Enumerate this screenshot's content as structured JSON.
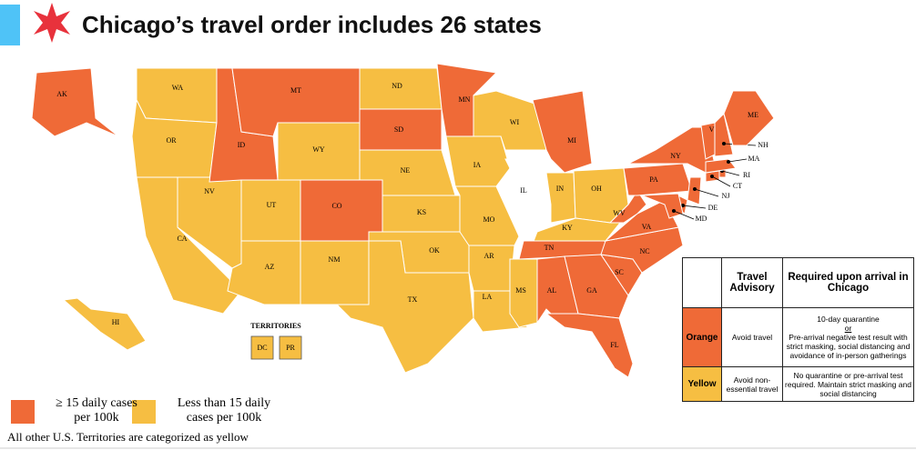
{
  "header": {
    "title": "Chicago’s travel order includes 26 states"
  },
  "map": {
    "colors": {
      "orange": "#ef6a37",
      "yellow": "#f6be42",
      "white": "#ffffff"
    },
    "states": [
      {
        "label": "AK",
        "status": "orange"
      },
      {
        "label": "HI",
        "status": "yellow"
      },
      {
        "label": "WA",
        "status": "yellow"
      },
      {
        "label": "OR",
        "status": "yellow"
      },
      {
        "label": "CA",
        "status": "yellow"
      },
      {
        "label": "NV",
        "status": "yellow"
      },
      {
        "label": "ID",
        "status": "orange"
      },
      {
        "label": "MT",
        "status": "orange"
      },
      {
        "label": "WY",
        "status": "yellow"
      },
      {
        "label": "UT",
        "status": "yellow"
      },
      {
        "label": "CO",
        "status": "orange"
      },
      {
        "label": "AZ",
        "status": "yellow"
      },
      {
        "label": "NM",
        "status": "yellow"
      },
      {
        "label": "ND",
        "status": "yellow"
      },
      {
        "label": "SD",
        "status": "orange"
      },
      {
        "label": "NE",
        "status": "yellow"
      },
      {
        "label": "KS",
        "status": "yellow"
      },
      {
        "label": "OK",
        "status": "yellow"
      },
      {
        "label": "TX",
        "status": "yellow"
      },
      {
        "label": "MN",
        "status": "orange"
      },
      {
        "label": "IA",
        "status": "yellow"
      },
      {
        "label": "MO",
        "status": "yellow"
      },
      {
        "label": "AR",
        "status": "yellow"
      },
      {
        "label": "LA",
        "status": "yellow"
      },
      {
        "label": "WI",
        "status": "yellow"
      },
      {
        "label": "IL",
        "status": "white"
      },
      {
        "label": "MI",
        "status": "orange"
      },
      {
        "label": "IN",
        "status": "yellow"
      },
      {
        "label": "OH",
        "status": "yellow"
      },
      {
        "label": "KY",
        "status": "yellow"
      },
      {
        "label": "TN",
        "status": "orange"
      },
      {
        "label": "MS",
        "status": "yellow"
      },
      {
        "label": "AL",
        "status": "orange"
      },
      {
        "label": "GA",
        "status": "orange"
      },
      {
        "label": "FL",
        "status": "orange"
      },
      {
        "label": "SC",
        "status": "orange"
      },
      {
        "label": "NC",
        "status": "orange"
      },
      {
        "label": "VA",
        "status": "orange"
      },
      {
        "label": "WV",
        "status": "orange"
      },
      {
        "label": "PA",
        "status": "orange"
      },
      {
        "label": "NY",
        "status": "orange"
      },
      {
        "label": "NJ",
        "status": "orange"
      },
      {
        "label": "DE",
        "status": "orange"
      },
      {
        "label": "MD",
        "status": "orange"
      },
      {
        "label": "CT",
        "status": "orange"
      },
      {
        "label": "RI",
        "status": "orange"
      },
      {
        "label": "MA",
        "status": "orange"
      },
      {
        "label": "VT",
        "status": "orange"
      },
      {
        "label": "NH",
        "status": "orange"
      },
      {
        "label": "ME",
        "status": "orange"
      }
    ],
    "territories_title": "TERRITORIES",
    "territories": [
      {
        "label": "DC",
        "status": "yellow"
      },
      {
        "label": "PR",
        "status": "yellow"
      }
    ]
  },
  "legend": [
    {
      "lines": [
        "≥ 15 daily cases",
        "per 100k"
      ],
      "status": "orange"
    },
    {
      "lines": [
        "Less than 15 daily",
        "cases per 100k"
      ],
      "status": "yellow"
    }
  ],
  "table": {
    "headers": [
      "Travel Advisory",
      "Required upon arrival in Chicago"
    ],
    "rows": [
      {
        "status": "orange",
        "name": "Orange",
        "advisory": "Avoid travel",
        "requirement": [
          "10-day quarantine",
          "or",
          "Pre-arrival negative test result with strict masking, social distancing and avoidance of in-person gatherings"
        ]
      },
      {
        "status": "yellow",
        "name": "Yellow",
        "advisory": "Avoid non-essential travel",
        "requirement": [
          "No quarantine or pre-arrival test required. Maintain strict masking and social distancing"
        ]
      }
    ]
  },
  "footnote": "All other U.S. Territories are categorized as yellow"
}
